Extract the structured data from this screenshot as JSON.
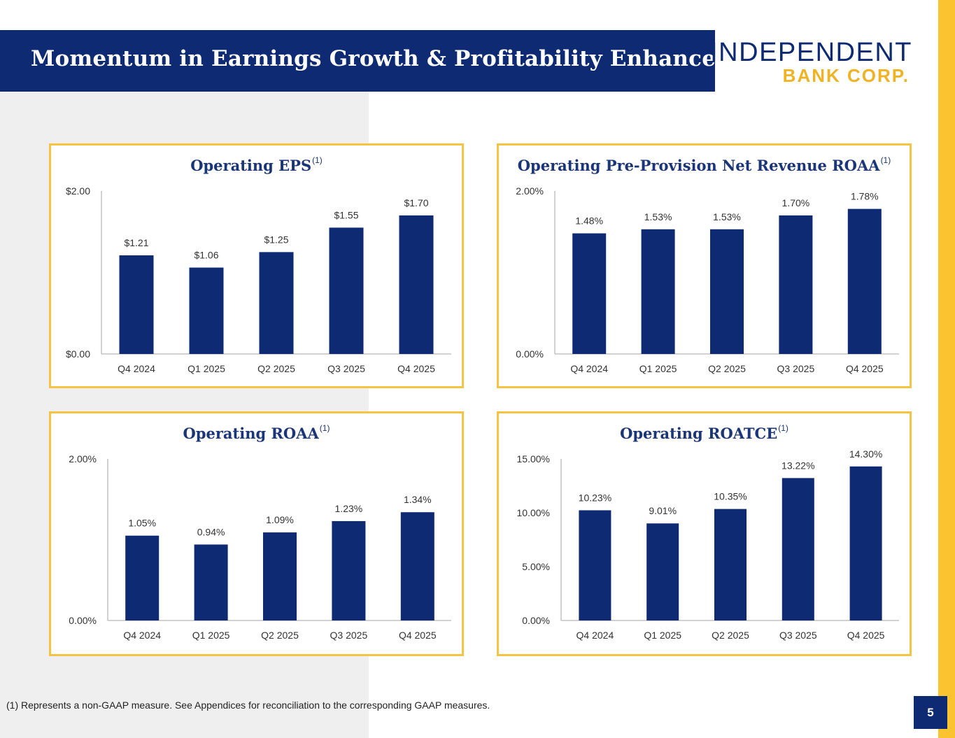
{
  "slide": {
    "title": "Momentum in Earnings Growth & Profitability Enhancement",
    "logo_line1": "INDEPENDENT",
    "logo_line2": "BANK CORP.",
    "footnote": "(1) Represents a non-GAAP measure. See Appendices for reconciliation to the corresponding GAAP measures.",
    "page_number": "5",
    "colors": {
      "navy": "#0d2a72",
      "gold": "#fcc331",
      "panel_border": "#f6c443",
      "gray_bg": "#efefef"
    }
  },
  "chart_data": [
    {
      "type": "bar",
      "title": "Operating EPS",
      "title_sup": "(1)",
      "categories": [
        "Q4 2024",
        "Q1 2025",
        "Q2 2025",
        "Q3 2025",
        "Q4 2025"
      ],
      "values": [
        1.21,
        1.06,
        1.25,
        1.55,
        1.7
      ],
      "data_labels": [
        "$1.21",
        "$1.06",
        "$1.25",
        "$1.55",
        "$1.70"
      ],
      "ylim": [
        0,
        2
      ],
      "yticks": [
        0,
        2
      ],
      "ytick_labels": [
        "$0.00",
        "$2.00"
      ],
      "xlabel": "",
      "ylabel": ""
    },
    {
      "type": "bar",
      "title": "Operating Pre-Provision Net Revenue ROAA",
      "title_sup": "(1)",
      "categories": [
        "Q4 2024",
        "Q1 2025",
        "Q2 2025",
        "Q3 2025",
        "Q4 2025"
      ],
      "values": [
        1.48,
        1.53,
        1.53,
        1.7,
        1.78
      ],
      "data_labels": [
        "1.48%",
        "1.53%",
        "1.53%",
        "1.70%",
        "1.78%"
      ],
      "ylim": [
        0,
        2
      ],
      "yticks": [
        0,
        2
      ],
      "ytick_labels": [
        "0.00%",
        "2.00%"
      ],
      "xlabel": "",
      "ylabel": ""
    },
    {
      "type": "bar",
      "title": "Operating ROAA",
      "title_sup": "(1)",
      "categories": [
        "Q4 2024",
        "Q1 2025",
        "Q2 2025",
        "Q3 2025",
        "Q4 2025"
      ],
      "values": [
        1.05,
        0.94,
        1.09,
        1.23,
        1.34
      ],
      "data_labels": [
        "1.05%",
        "0.94%",
        "1.09%",
        "1.23%",
        "1.34%"
      ],
      "ylim": [
        0,
        2
      ],
      "yticks": [
        0,
        2
      ],
      "ytick_labels": [
        "0.00%",
        "2.00%"
      ],
      "xlabel": "",
      "ylabel": ""
    },
    {
      "type": "bar",
      "title": "Operating ROATCE",
      "title_sup": "(1)",
      "categories": [
        "Q4 2024",
        "Q1 2025",
        "Q2 2025",
        "Q3 2025",
        "Q4 2025"
      ],
      "values": [
        10.23,
        9.01,
        10.35,
        13.22,
        14.3
      ],
      "data_labels": [
        "10.23%",
        "9.01%",
        "10.35%",
        "13.22%",
        "14.30%"
      ],
      "ylim": [
        0,
        15
      ],
      "yticks": [
        0,
        5,
        10,
        15
      ],
      "ytick_labels": [
        "0.00%",
        "5.00%",
        "10.00%",
        "15.00%"
      ],
      "xlabel": "",
      "ylabel": ""
    }
  ]
}
